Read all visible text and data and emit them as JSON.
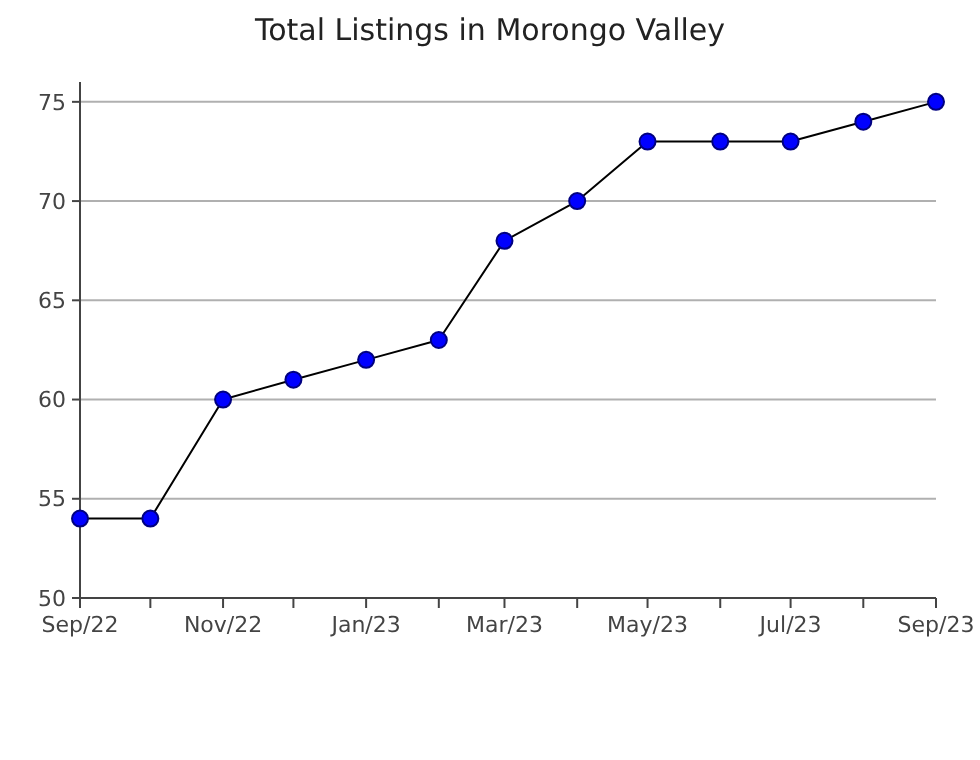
{
  "chart_data": {
    "type": "line",
    "title": "Total Listings in Morongo Valley",
    "x": [
      "2022-09",
      "2022-10",
      "2022-11",
      "2022-12",
      "2023-01",
      "2023-02",
      "2023-03",
      "2023-04",
      "2023-05",
      "2023-06",
      "2023-07",
      "2023-08",
      "2023-09"
    ],
    "series": [
      {
        "color": "#0000ff",
        "values": [
          54,
          54,
          60,
          61,
          62,
          63,
          68,
          70,
          73,
          73,
          73,
          74,
          75
        ]
      }
    ],
    "xlim": [
      "2022-09",
      "2023-09"
    ],
    "xticks": [
      {
        "value": "2022-09",
        "label": "Sep/22"
      },
      {
        "value": "2022-10",
        "label": null
      },
      {
        "value": "2022-11",
        "label": "Nov/22"
      },
      {
        "value": "2022-12",
        "label": null
      },
      {
        "value": "2023-01",
        "label": "Jan/23"
      },
      {
        "value": "2023-02",
        "label": null
      },
      {
        "value": "2023-03",
        "label": "Mar/23"
      },
      {
        "value": "2023-04",
        "label": null
      },
      {
        "value": "2023-05",
        "label": "May/23"
      },
      {
        "value": "2023-06",
        "label": null
      },
      {
        "value": "2023-07",
        "label": "Jul/23"
      },
      {
        "value": "2023-08",
        "label": null
      },
      {
        "value": "2023-09",
        "label": "Sep/23"
      }
    ],
    "ylim": [
      50,
      76
    ],
    "yticks": [
      50,
      55,
      60,
      65,
      70,
      75
    ],
    "grid": "y",
    "marker": "circle",
    "line_style": "solid"
  }
}
